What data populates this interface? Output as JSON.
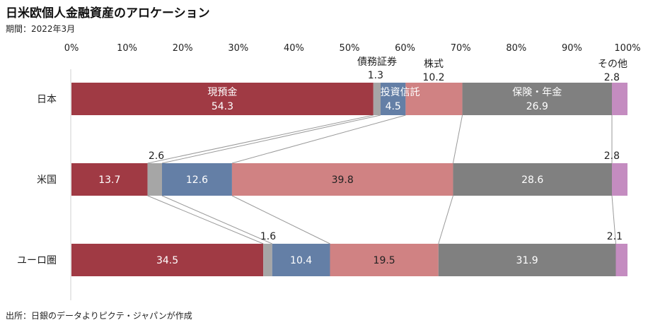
{
  "title": "日米欧個人金融資産のアロケーション",
  "period": "期間：2022年3月",
  "source": "出所：日銀のデータよりピクテ・ジャパンが作成",
  "colors": {
    "現預金": "#a03a44",
    "債務証券": "#a6a6a6",
    "投資信託": "#647fa6",
    "株式": "#d08283",
    "保険・年金": "#808080",
    "その他": "#c48cc0"
  },
  "chart_data": {
    "type": "bar",
    "orientation": "horizontal",
    "stacked": "100%",
    "categories": [
      "日本",
      "米国",
      "ユーロ圏"
    ],
    "series": [
      {
        "name": "現預金",
        "values": [
          54.3,
          13.7,
          34.5
        ]
      },
      {
        "name": "債務証券",
        "values": [
          1.3,
          2.6,
          1.6
        ]
      },
      {
        "name": "投資信託",
        "values": [
          4.5,
          12.6,
          10.4
        ]
      },
      {
        "name": "株式",
        "values": [
          10.2,
          39.8,
          19.5
        ]
      },
      {
        "name": "保険・年金",
        "values": [
          26.9,
          28.6,
          31.9
        ]
      },
      {
        "name": "その他",
        "values": [
          2.8,
          2.8,
          2.1
        ]
      }
    ],
    "value_labels": [
      [
        "54.3",
        "1.3",
        "4.5",
        "10.2",
        "26.9",
        "2.8"
      ],
      [
        "13.7",
        "2.6",
        "12.6",
        "39.8",
        "28.6",
        "2.8"
      ],
      [
        "34.5",
        "1.6",
        "10.4",
        "19.5",
        "31.9",
        "2.1"
      ]
    ],
    "xlim": [
      0,
      100
    ],
    "xticks": [
      "0%",
      "10%",
      "20%",
      "30%",
      "40%",
      "50%",
      "60%",
      "70%",
      "80%",
      "90%",
      "100%"
    ],
    "axis_position": "top",
    "connector_lines": true,
    "grid": false,
    "legend": "none"
  }
}
